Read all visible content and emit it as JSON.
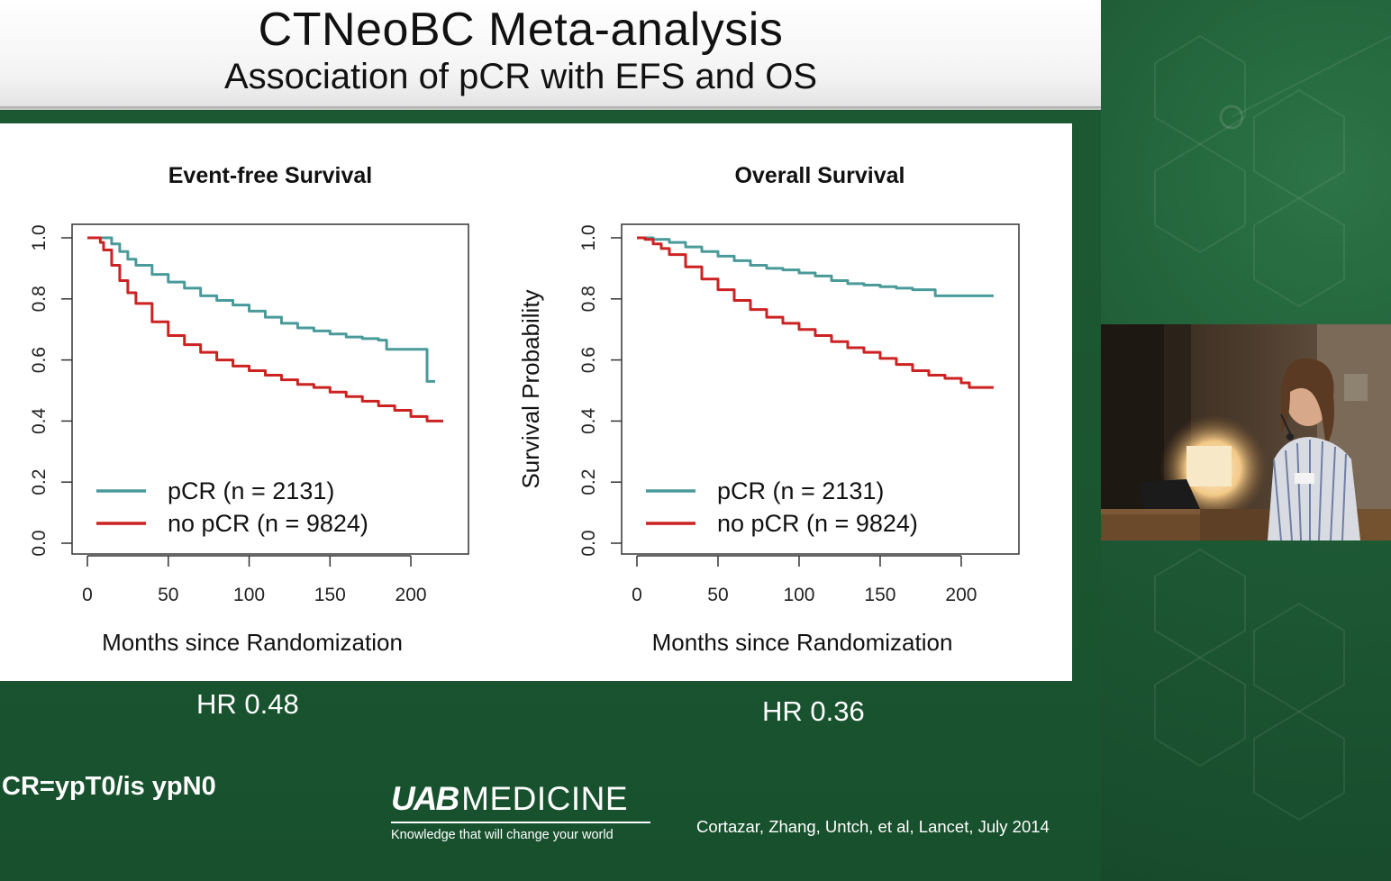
{
  "slide": {
    "title": "CTNeoBC Meta-analysis",
    "subtitle": "Association of pCR with EFS and OS",
    "pcr_definition": "CR=ypT0/is ypN0",
    "citation": "Cortazar, Zhang, Untch, et al, Lancet, July 2014",
    "logo": {
      "mark": "UAB",
      "name": "MEDICINE",
      "tagline": "Knowledge that will change your world"
    },
    "hr_efs": "HR 0.48",
    "hr_os": "HR 0.36"
  },
  "colors": {
    "pcr_line": "#4a9a9a",
    "no_pcr_line": "#cc2222",
    "slide_green": "#1d5a33"
  },
  "chart_data": [
    {
      "type": "line",
      "title": "Event-free Survival",
      "xlabel": "Months since Randomization",
      "ylabel": "",
      "xlim": [
        0,
        225
      ],
      "ylim": [
        0,
        1.0
      ],
      "xticks": [
        "0",
        "50",
        "100",
        "150",
        "200"
      ],
      "yticks": [
        "0.0",
        "0.2",
        "0.4",
        "0.6",
        "0.8",
        "1.0"
      ],
      "legend_position": "bottom-left",
      "series": [
        {
          "name": "pCR (n = 2131)",
          "color": "#4a9a9a",
          "step": true,
          "x": [
            0,
            5,
            10,
            15,
            20,
            25,
            30,
            40,
            50,
            60,
            70,
            80,
            90,
            100,
            110,
            120,
            130,
            140,
            150,
            160,
            170,
            180,
            185,
            190,
            195,
            200,
            205,
            208,
            210,
            215
          ],
          "y": [
            1.0,
            1.0,
            1.0,
            0.98,
            0.955,
            0.93,
            0.91,
            0.88,
            0.855,
            0.835,
            0.81,
            0.795,
            0.78,
            0.76,
            0.74,
            0.72,
            0.705,
            0.695,
            0.685,
            0.675,
            0.67,
            0.665,
            0.635,
            0.635,
            0.635,
            0.635,
            0.635,
            0.635,
            0.53,
            0.53
          ]
        },
        {
          "name": "no pCR (n = 9824)",
          "color": "#cc2222",
          "step": true,
          "x": [
            0,
            5,
            8,
            10,
            15,
            20,
            25,
            30,
            40,
            50,
            60,
            70,
            80,
            90,
            100,
            110,
            120,
            130,
            140,
            150,
            160,
            170,
            180,
            190,
            200,
            210,
            220
          ],
          "y": [
            1.0,
            1.0,
            0.985,
            0.96,
            0.91,
            0.86,
            0.82,
            0.785,
            0.725,
            0.68,
            0.65,
            0.625,
            0.6,
            0.58,
            0.565,
            0.55,
            0.535,
            0.52,
            0.51,
            0.495,
            0.48,
            0.465,
            0.45,
            0.435,
            0.415,
            0.4,
            0.4
          ]
        }
      ]
    },
    {
      "type": "line",
      "title": "Overall Survival",
      "xlabel": "Months since Randomization",
      "ylabel": "Survival Probability",
      "xlim": [
        0,
        225
      ],
      "ylim": [
        0,
        1.0
      ],
      "xticks": [
        "0",
        "50",
        "100",
        "150",
        "200"
      ],
      "yticks": [
        "0.0",
        "0.2",
        "0.4",
        "0.6",
        "0.8",
        "1.0"
      ],
      "legend_position": "bottom-left",
      "series": [
        {
          "name": "pCR (n = 2131)",
          "color": "#4a9a9a",
          "step": true,
          "x": [
            0,
            5,
            10,
            20,
            30,
            40,
            50,
            60,
            70,
            80,
            90,
            100,
            110,
            120,
            130,
            140,
            150,
            160,
            170,
            180,
            184,
            190,
            200,
            210,
            220
          ],
          "y": [
            1.0,
            1.0,
            0.995,
            0.985,
            0.97,
            0.955,
            0.94,
            0.925,
            0.91,
            0.9,
            0.895,
            0.885,
            0.875,
            0.86,
            0.85,
            0.845,
            0.84,
            0.835,
            0.83,
            0.83,
            0.81,
            0.81,
            0.81,
            0.81,
            0.81
          ]
        },
        {
          "name": "no pCR (n = 9824)",
          "color": "#cc2222",
          "step": true,
          "x": [
            0,
            5,
            10,
            15,
            20,
            30,
            40,
            50,
            60,
            70,
            80,
            90,
            100,
            110,
            120,
            130,
            140,
            150,
            160,
            170,
            180,
            190,
            200,
            205,
            210,
            220
          ],
          "y": [
            1.0,
            0.995,
            0.98,
            0.965,
            0.945,
            0.905,
            0.865,
            0.83,
            0.795,
            0.765,
            0.74,
            0.72,
            0.7,
            0.68,
            0.66,
            0.64,
            0.625,
            0.605,
            0.585,
            0.565,
            0.55,
            0.54,
            0.525,
            0.51,
            0.51,
            0.51
          ]
        }
      ]
    }
  ]
}
